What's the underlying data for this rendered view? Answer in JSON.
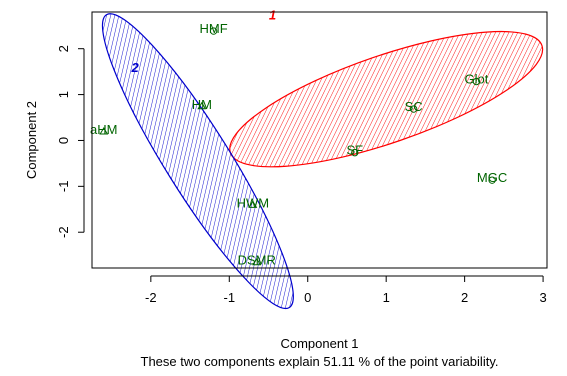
{
  "chart_data": {
    "type": "scatter",
    "xlabel": "Component 1",
    "ylabel": "Component 2",
    "subtitle": "These two components explain 51.11 % of the point variability.",
    "xlim": [
      -2.75,
      3.05
    ],
    "ylim": [
      -2.78,
      2.8
    ],
    "x_ticks": [
      -2,
      -1,
      0,
      1,
      2,
      3
    ],
    "y_ticks": [
      -2,
      -1,
      0,
      1,
      2
    ],
    "x_tick_labels": [
      "-2",
      "-1",
      "0",
      "1",
      "2",
      "3"
    ],
    "y_tick_labels": [
      "-2",
      "-1",
      "0",
      "1",
      "2"
    ],
    "grid": false,
    "point_color": "#006400",
    "clusters": [
      {
        "id": "1",
        "color": "#FF0000",
        "center": [
          1.0,
          0.9
        ],
        "semi_axis_major": 2.1,
        "semi_axis_minor": 0.95,
        "label_at": [
          -0.45,
          2.75
        ]
      },
      {
        "id": "2",
        "color": "#0000CD",
        "center": [
          -1.4,
          -0.45
        ],
        "semi_axis_major": 2.2,
        "semi_axis_minor": 0.7,
        "label_at": [
          -2.2,
          1.6
        ]
      }
    ],
    "points": [
      {
        "label": "HMF",
        "x": -1.2,
        "y": 2.45,
        "cluster": 1
      },
      {
        "label": "Glot",
        "x": 2.15,
        "y": 1.35,
        "cluster": 1
      },
      {
        "label": "SC",
        "x": 1.35,
        "y": 0.75,
        "cluster": 1
      },
      {
        "label": "SF",
        "x": 0.6,
        "y": -0.2,
        "cluster": 1
      },
      {
        "label": "MGC",
        "x": 2.35,
        "y": -0.8,
        "cluster": 1
      },
      {
        "label": "HM",
        "x": -1.35,
        "y": 0.8,
        "cluster": 2
      },
      {
        "label": "aHM",
        "x": -2.6,
        "y": 0.25,
        "cluster": 2
      },
      {
        "label": "HWM",
        "x": -0.7,
        "y": -1.35,
        "cluster": 2
      },
      {
        "label": "DSMR",
        "x": -0.65,
        "y": -2.6,
        "cluster": 2
      }
    ]
  }
}
